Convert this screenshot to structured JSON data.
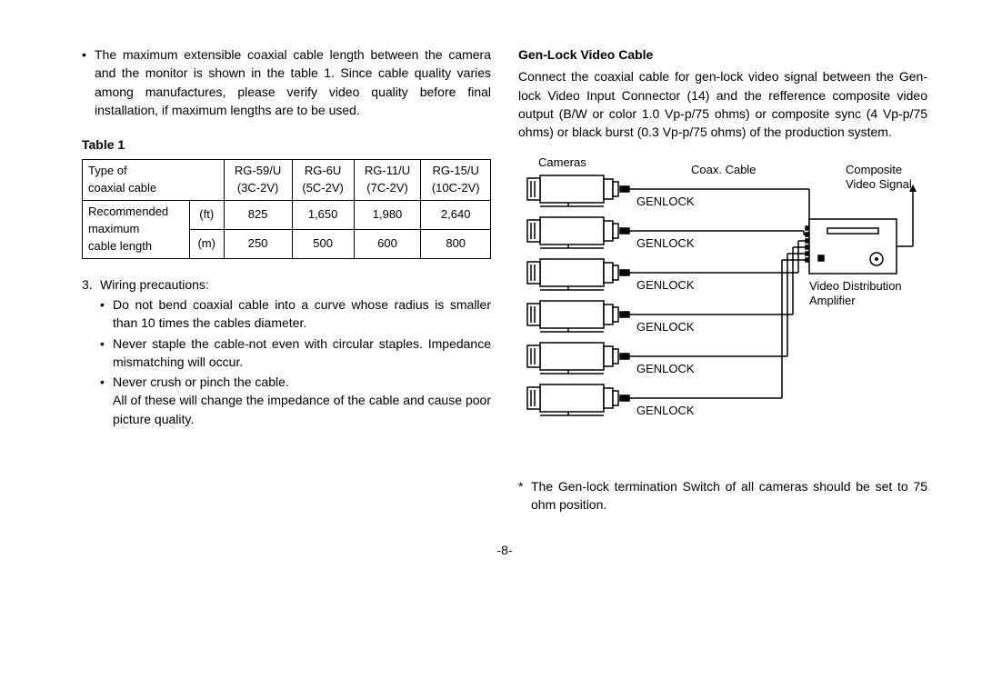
{
  "left": {
    "intro_bullet": "The maximum extensible coaxial cable length between the camera and the monitor is shown in the table 1.  Since cable quality varies among manufactures, please verify video quality before final installation, if maximum lengths are to be used.",
    "table_caption": "Table 1",
    "table": {
      "header_row1": [
        "Type of\ncoaxial cable",
        "RG-59/U\n(3C-2V)",
        "RG-6U\n(5C-2V)",
        "RG-11/U\n(7C-2V)",
        "RG-15/U\n(10C-2V)"
      ],
      "row_label": "Recommended\nmaximum\ncable length",
      "units": [
        "(ft)",
        "(m)"
      ],
      "rows": [
        [
          "825",
          "1,650",
          "1,980",
          "2,640"
        ],
        [
          "250",
          "500",
          "600",
          "800"
        ]
      ],
      "col_widths": [
        "30%",
        "8%",
        "15.5%",
        "15.5%",
        "15.5%",
        "15.5%"
      ],
      "border_color": "#000000",
      "font_size": 13
    },
    "list_number": "3.",
    "list_title": "Wiring precautions:",
    "precautions": [
      "Do not bend coaxial cable into a curve whose radius is smaller than 10 times the cables diameter.",
      "Never staple the cable-not even with circular staples. Impedance mismatching will occur.",
      "Never crush or pinch the cable.\nAll of these will change the impedance of the cable and cause poor picture quality."
    ]
  },
  "right": {
    "heading": "Gen-Lock Video Cable",
    "paragraph": "Connect the coaxial cable for gen-lock video signal between the Gen-lock Video Input Connector (14) and the refference composite video output (B/W or color 1.0 Vp-p/75 ohms) or composite sync (4 Vp-p/75 ohms) or black burst (0.3 Vp-p/75 ohms) of the production system.",
    "diagram": {
      "cameras_label": "Cameras",
      "coax_label": "Coax. Cable",
      "genlock_label": "GENLOCK",
      "composite_label_l1": "Composite",
      "composite_label_l2": "Video Signal",
      "amp_label_l1": "Video Distribution",
      "amp_label_l2": "Amplifier",
      "num_cameras": 6,
      "stroke": "#000000",
      "stroke_width": 1.5,
      "font_size": 13,
      "camera_w": 90,
      "camera_h": 30
    },
    "note": "The Gen-lock termination Switch of all cameras should be set to 75 ohm position."
  },
  "pagenum": "-8-"
}
